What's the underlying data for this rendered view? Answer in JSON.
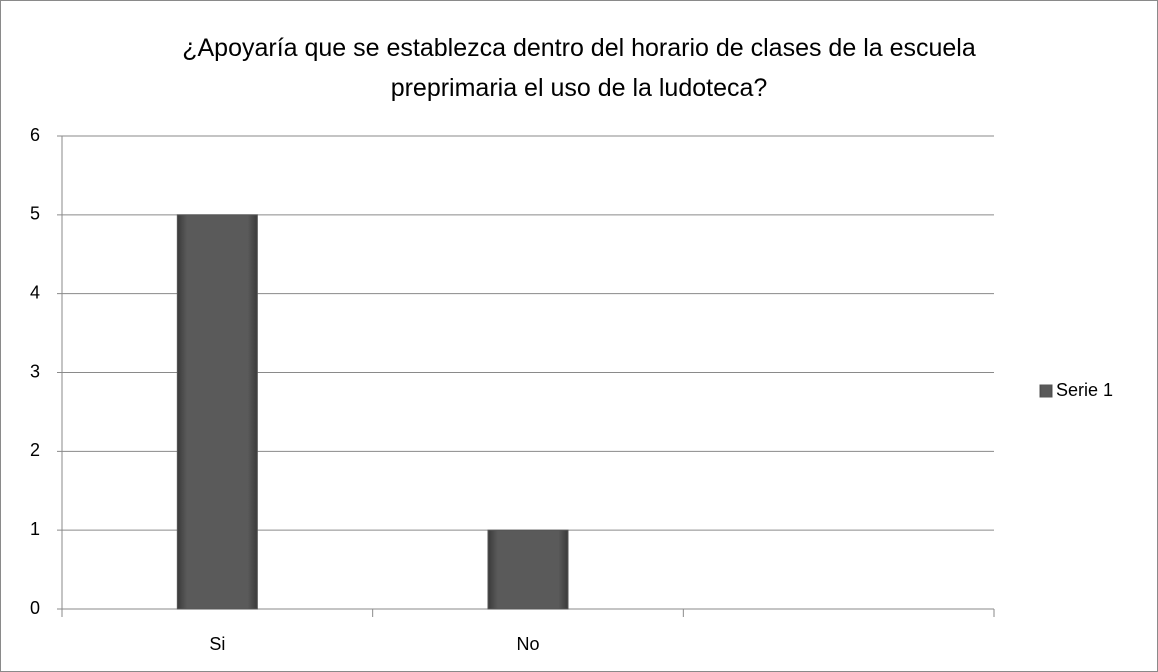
{
  "chart_data": {
    "type": "bar",
    "title": "¿Apoyaría que se establezca dentro del horario de clases de la escuela preprimaria el uso de la ludoteca?",
    "categories": [
      "Si",
      "No",
      null
    ],
    "series": [
      {
        "name": "Serie 1",
        "color": "#555555",
        "values": [
          5,
          1,
          null
        ]
      }
    ],
    "ylim": [
      0,
      6
    ],
    "yticks": [
      0,
      1,
      2,
      3,
      4,
      5,
      6
    ],
    "grid": true,
    "legend": "right"
  }
}
